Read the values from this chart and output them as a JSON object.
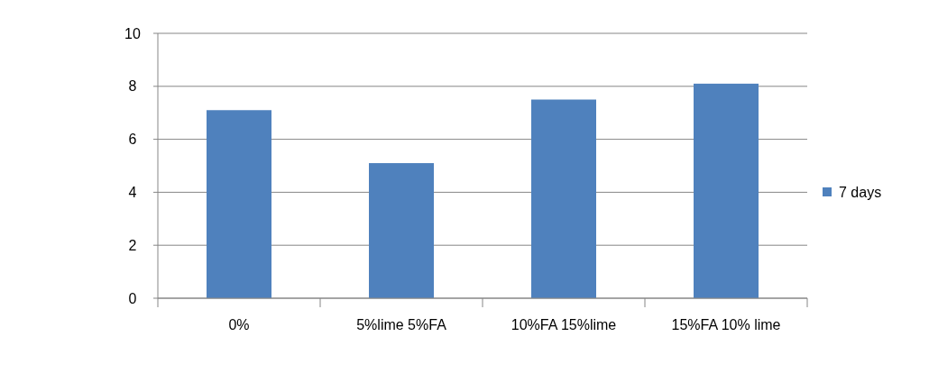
{
  "chart_data": {
    "type": "bar",
    "categories": [
      "0%",
      "5%lime 5%FA",
      "10%FA 15%lime",
      "15%FA 10% lime"
    ],
    "series": [
      {
        "name": "7 days",
        "color": "#4f81bd",
        "values": [
          7.1,
          5.1,
          7.5,
          8.1
        ]
      }
    ],
    "ylim": [
      0,
      10
    ],
    "yticks": [
      0,
      2,
      4,
      6,
      8,
      10
    ],
    "grid": "y",
    "legend": "right"
  }
}
